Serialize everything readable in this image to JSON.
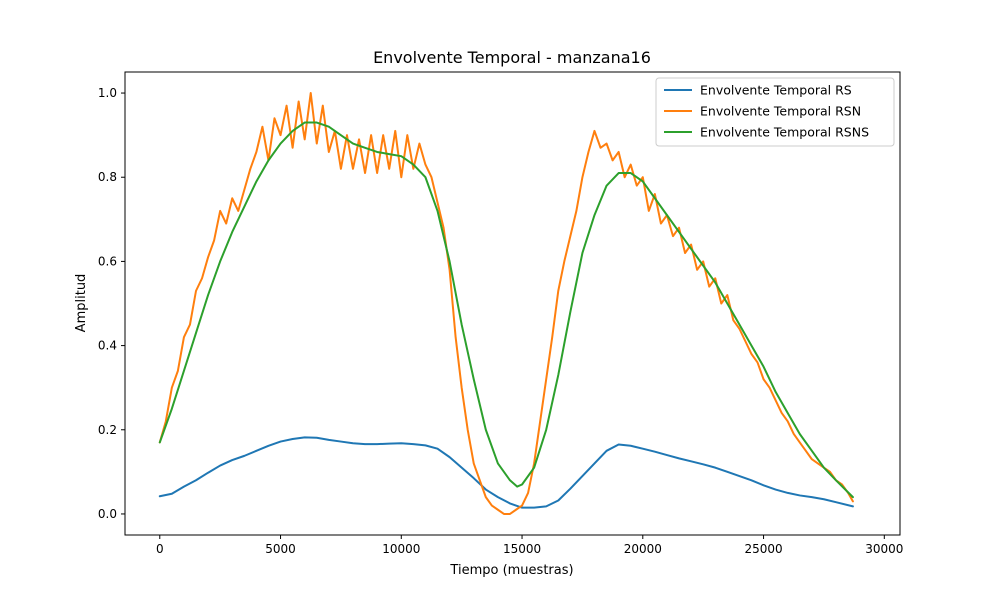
{
  "chart_data": {
    "type": "line",
    "title": "Envolvente Temporal - manzana16",
    "xlabel": "Tiempo (muestras)",
    "ylabel": "Amplitud",
    "xlim": [
      -1440,
      30650
    ],
    "ylim": [
      -0.05,
      1.05
    ],
    "xticks": [
      0,
      5000,
      10000,
      15000,
      20000,
      25000,
      30000
    ],
    "xtick_labels": [
      "0",
      "5000",
      "10000",
      "15000",
      "20000",
      "25000",
      "30000"
    ],
    "yticks": [
      0.0,
      0.2,
      0.4,
      0.6,
      0.8,
      1.0
    ],
    "ytick_labels": [
      "0.0",
      "0.2",
      "0.4",
      "0.6",
      "0.8",
      "1.0"
    ],
    "grid": false,
    "legend_position": "top-right",
    "series": [
      {
        "name": "Envolvente Temporal RS",
        "color": "#1f77b4",
        "x": [
          0,
          500,
          1000,
          1500,
          2000,
          2500,
          3000,
          3500,
          4000,
          4500,
          5000,
          5500,
          6000,
          6500,
          7000,
          7500,
          8000,
          8500,
          9000,
          9500,
          10000,
          10500,
          11000,
          11500,
          12000,
          12500,
          13000,
          13500,
          14000,
          14500,
          15000,
          15500,
          16000,
          16500,
          17000,
          17500,
          18000,
          18500,
          19000,
          19500,
          20000,
          20500,
          21000,
          21500,
          22000,
          22500,
          23000,
          23500,
          24000,
          24500,
          25000,
          25500,
          26000,
          26500,
          27000,
          27500,
          28000,
          28700
        ],
        "values": [
          0.042,
          0.048,
          0.065,
          0.08,
          0.098,
          0.115,
          0.128,
          0.138,
          0.15,
          0.162,
          0.172,
          0.178,
          0.182,
          0.181,
          0.176,
          0.172,
          0.168,
          0.166,
          0.166,
          0.167,
          0.168,
          0.166,
          0.163,
          0.155,
          0.135,
          0.11,
          0.085,
          0.058,
          0.04,
          0.025,
          0.015,
          0.015,
          0.018,
          0.032,
          0.06,
          0.09,
          0.12,
          0.15,
          0.165,
          0.162,
          0.155,
          0.148,
          0.14,
          0.132,
          0.125,
          0.118,
          0.11,
          0.1,
          0.09,
          0.08,
          0.068,
          0.058,
          0.05,
          0.044,
          0.04,
          0.035,
          0.028,
          0.018
        ]
      },
      {
        "name": "Envolvente Temporal RSN",
        "color": "#ff7f0e",
        "x": [
          0,
          250,
          500,
          750,
          1000,
          1250,
          1500,
          1750,
          2000,
          2250,
          2500,
          2750,
          3000,
          3250,
          3500,
          3750,
          4000,
          4250,
          4500,
          4750,
          5000,
          5250,
          5500,
          5750,
          6000,
          6250,
          6500,
          6750,
          7000,
          7250,
          7500,
          7750,
          8000,
          8250,
          8500,
          8750,
          9000,
          9250,
          9500,
          9750,
          10000,
          10250,
          10500,
          10750,
          11000,
          11250,
          11500,
          11750,
          12000,
          12250,
          12500,
          12750,
          13000,
          13250,
          13500,
          13750,
          14000,
          14250,
          14500,
          14750,
          15000,
          15250,
          15500,
          15750,
          16000,
          16250,
          16500,
          16750,
          17000,
          17250,
          17500,
          17750,
          18000,
          18250,
          18500,
          18750,
          19000,
          19250,
          19500,
          19750,
          20000,
          20250,
          20500,
          20750,
          21000,
          21250,
          21500,
          21750,
          22000,
          22250,
          22500,
          22750,
          23000,
          23250,
          23500,
          23750,
          24000,
          24250,
          24500,
          24750,
          25000,
          25250,
          25500,
          25750,
          26000,
          26250,
          26500,
          26750,
          27000,
          27250,
          27500,
          27750,
          28000,
          28250,
          28500,
          28700
        ],
        "values": [
          0.17,
          0.22,
          0.3,
          0.34,
          0.42,
          0.45,
          0.53,
          0.56,
          0.61,
          0.65,
          0.72,
          0.69,
          0.75,
          0.72,
          0.77,
          0.82,
          0.86,
          0.92,
          0.84,
          0.94,
          0.9,
          0.97,
          0.87,
          0.98,
          0.89,
          1.0,
          0.88,
          0.97,
          0.86,
          0.91,
          0.82,
          0.9,
          0.82,
          0.89,
          0.81,
          0.9,
          0.81,
          0.9,
          0.82,
          0.91,
          0.8,
          0.9,
          0.82,
          0.88,
          0.83,
          0.8,
          0.74,
          0.68,
          0.58,
          0.42,
          0.3,
          0.2,
          0.12,
          0.08,
          0.04,
          0.02,
          0.01,
          0.0,
          0.0,
          0.01,
          0.02,
          0.05,
          0.12,
          0.22,
          0.32,
          0.42,
          0.53,
          0.6,
          0.66,
          0.72,
          0.8,
          0.86,
          0.91,
          0.87,
          0.88,
          0.84,
          0.86,
          0.8,
          0.83,
          0.78,
          0.8,
          0.72,
          0.76,
          0.69,
          0.71,
          0.66,
          0.68,
          0.62,
          0.64,
          0.58,
          0.6,
          0.54,
          0.56,
          0.5,
          0.52,
          0.46,
          0.44,
          0.41,
          0.38,
          0.36,
          0.32,
          0.3,
          0.27,
          0.24,
          0.22,
          0.19,
          0.17,
          0.15,
          0.13,
          0.12,
          0.11,
          0.1,
          0.08,
          0.07,
          0.05,
          0.03
        ]
      },
      {
        "name": "Envolvente Temporal RSNS",
        "color": "#2ca02c",
        "x": [
          0,
          500,
          1000,
          1500,
          2000,
          2500,
          3000,
          3500,
          4000,
          4500,
          5000,
          5500,
          6000,
          6500,
          7000,
          7500,
          8000,
          8500,
          9000,
          9500,
          10000,
          10500,
          11000,
          11500,
          12000,
          12500,
          13000,
          13500,
          14000,
          14500,
          14800,
          15000,
          15500,
          16000,
          16500,
          17000,
          17500,
          18000,
          18500,
          19000,
          19500,
          20000,
          20500,
          21000,
          21500,
          22000,
          22500,
          23000,
          23500,
          24000,
          24500,
          25000,
          25500,
          26000,
          26500,
          27000,
          27500,
          28000,
          28700
        ],
        "values": [
          0.17,
          0.25,
          0.34,
          0.43,
          0.52,
          0.6,
          0.67,
          0.73,
          0.79,
          0.84,
          0.88,
          0.91,
          0.93,
          0.93,
          0.92,
          0.9,
          0.88,
          0.87,
          0.86,
          0.855,
          0.85,
          0.83,
          0.8,
          0.72,
          0.6,
          0.45,
          0.32,
          0.2,
          0.12,
          0.08,
          0.065,
          0.07,
          0.11,
          0.2,
          0.33,
          0.48,
          0.62,
          0.71,
          0.78,
          0.81,
          0.81,
          0.79,
          0.75,
          0.71,
          0.67,
          0.63,
          0.59,
          0.55,
          0.5,
          0.45,
          0.4,
          0.35,
          0.29,
          0.24,
          0.19,
          0.15,
          0.11,
          0.08,
          0.04
        ]
      }
    ]
  }
}
